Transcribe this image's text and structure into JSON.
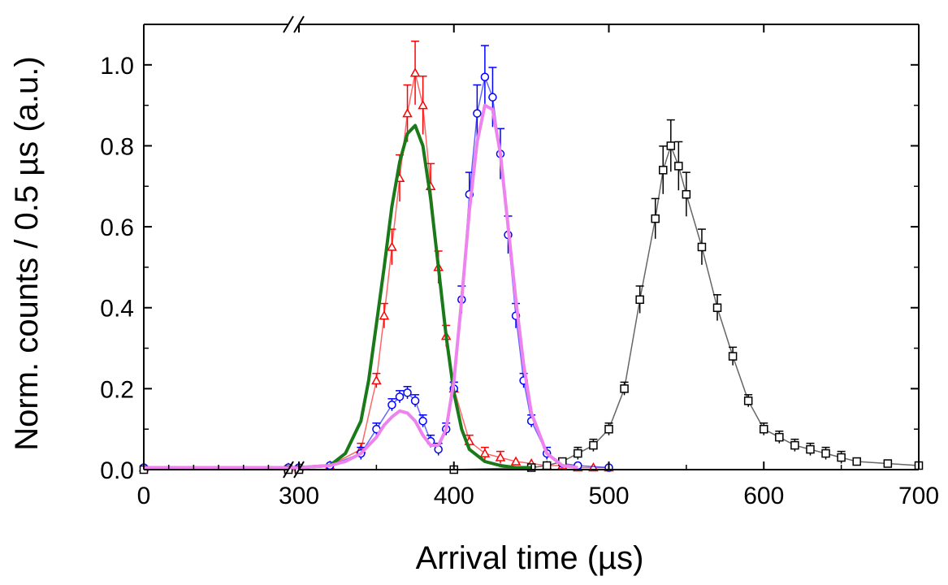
{
  "chart_data": {
    "type": "scatter",
    "title": "",
    "xlabel": "Arrival time (µs)",
    "ylabel": "Norm. counts / 0.5 µs (a.u.)",
    "xlim": [
      0,
      700
    ],
    "ylim": [
      0,
      1.1
    ],
    "x_axis_break": {
      "from": 0,
      "to": 300,
      "broken_segment_end": 290
    },
    "x_ticks": [
      0,
      300,
      400,
      500,
      600,
      700
    ],
    "x_tick_labels": [
      "0",
      "300",
      "400",
      "500",
      "600",
      "700"
    ],
    "y_ticks": [
      0.0,
      0.2,
      0.4,
      0.6,
      0.8,
      1.0
    ],
    "y_tick_labels": [
      "0.0",
      "0.2",
      "0.4",
      "0.6",
      "0.8",
      "1.0"
    ],
    "grid": false,
    "legend": "none",
    "series": [
      {
        "marker": "up-triangle-open",
        "color": "#ff0000",
        "error_bars": true,
        "x": [
          0,
          290,
          300,
          320,
          340,
          350,
          355,
          360,
          365,
          370,
          375,
          380,
          385,
          390,
          395,
          400,
          410,
          420,
          430,
          440,
          450,
          460,
          470,
          480,
          490,
          500
        ],
        "y": [
          0.005,
          0.005,
          0.005,
          0.01,
          0.05,
          0.22,
          0.38,
          0.55,
          0.72,
          0.88,
          0.98,
          0.9,
          0.7,
          0.5,
          0.33,
          0.2,
          0.07,
          0.04,
          0.03,
          0.02,
          0.015,
          0.01,
          0.01,
          0.005,
          0.005,
          0.005
        ]
      },
      {
        "marker": "circle-open",
        "color": "#0000ff",
        "error_bars": true,
        "x": [
          0,
          290,
          300,
          320,
          340,
          350,
          360,
          365,
          370,
          375,
          380,
          385,
          390,
          395,
          400,
          405,
          410,
          415,
          420,
          425,
          430,
          435,
          440,
          445,
          450,
          460,
          470,
          480,
          500
        ],
        "y": [
          0.005,
          0.005,
          0.005,
          0.01,
          0.04,
          0.1,
          0.16,
          0.18,
          0.19,
          0.17,
          0.12,
          0.07,
          0.05,
          0.1,
          0.2,
          0.42,
          0.68,
          0.88,
          0.97,
          0.92,
          0.78,
          0.58,
          0.38,
          0.22,
          0.12,
          0.04,
          0.015,
          0.01,
          0.005
        ]
      },
      {
        "marker": "square-open",
        "color": "#000000",
        "error_bars": true,
        "x": [
          0,
          290,
          300,
          400,
          450,
          460,
          470,
          480,
          490,
          500,
          510,
          520,
          530,
          535,
          540,
          545,
          550,
          560,
          570,
          580,
          590,
          600,
          610,
          620,
          630,
          640,
          650,
          660,
          680,
          700
        ],
        "y": [
          0.0,
          0.0,
          0.0,
          0.0,
          0.005,
          0.01,
          0.02,
          0.04,
          0.06,
          0.1,
          0.2,
          0.42,
          0.62,
          0.74,
          0.8,
          0.75,
          0.68,
          0.55,
          0.4,
          0.28,
          0.17,
          0.1,
          0.08,
          0.06,
          0.05,
          0.04,
          0.03,
          0.02,
          0.015,
          0.01
        ]
      },
      {
        "style": "line",
        "color": "#1a7a1a",
        "x": [
          0,
          290,
          300,
          320,
          330,
          340,
          345,
          350,
          355,
          360,
          365,
          370,
          375,
          380,
          385,
          390,
          395,
          400,
          405,
          410,
          420,
          430,
          440,
          450
        ],
        "y": [
          0.005,
          0.005,
          0.005,
          0.01,
          0.04,
          0.12,
          0.22,
          0.36,
          0.5,
          0.65,
          0.76,
          0.83,
          0.85,
          0.8,
          0.67,
          0.5,
          0.33,
          0.19,
          0.1,
          0.05,
          0.02,
          0.01,
          0.005,
          0.005
        ]
      },
      {
        "style": "line",
        "color": "#ee82ee",
        "x": [
          0,
          290,
          300,
          320,
          330,
          340,
          350,
          355,
          360,
          365,
          370,
          375,
          380,
          385,
          390,
          395,
          400,
          405,
          410,
          415,
          420,
          425,
          430,
          435,
          440,
          445,
          450,
          460,
          470,
          480
        ],
        "y": [
          0.005,
          0.005,
          0.005,
          0.01,
          0.02,
          0.04,
          0.08,
          0.11,
          0.13,
          0.145,
          0.14,
          0.12,
          0.085,
          0.06,
          0.06,
          0.1,
          0.22,
          0.42,
          0.64,
          0.81,
          0.9,
          0.89,
          0.78,
          0.6,
          0.42,
          0.26,
          0.14,
          0.04,
          0.01,
          0.005
        ]
      }
    ]
  }
}
